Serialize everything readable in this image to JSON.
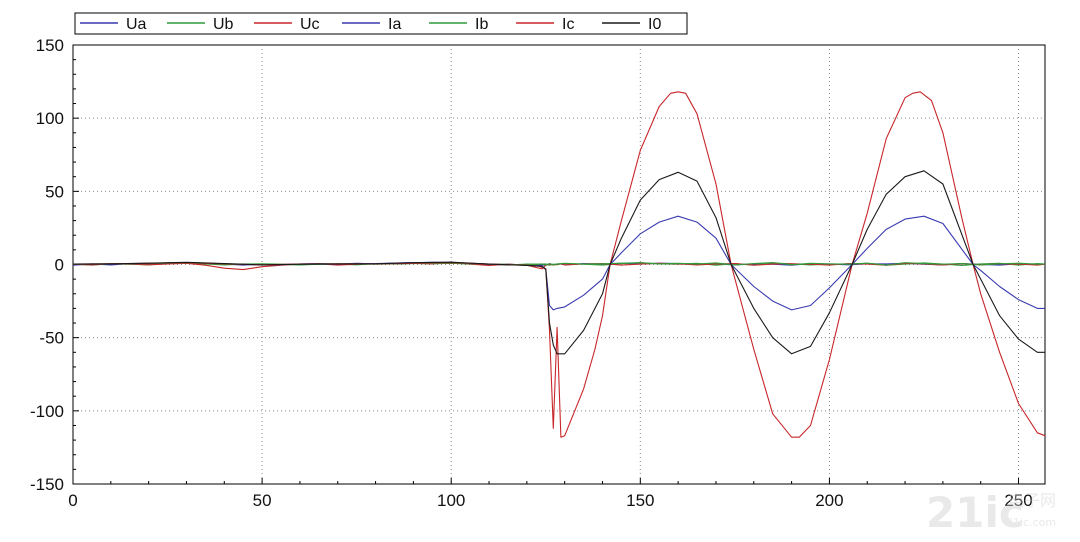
{
  "chart_data": {
    "type": "line",
    "title": "",
    "xlabel": "",
    "ylabel": "",
    "xlim": [
      0,
      257
    ],
    "ylim": [
      -150,
      150
    ],
    "x_ticks": [
      0,
      50,
      100,
      150,
      200,
      250
    ],
    "y_ticks": [
      150,
      100,
      50,
      0,
      -50,
      -100,
      -150
    ],
    "grid": true,
    "legend_position": "top",
    "series": [
      {
        "name": "Ua",
        "color": "#3a3ab0",
        "x": [
          0,
          5,
          10,
          15,
          20,
          25,
          30,
          35,
          40,
          45,
          50,
          55,
          60,
          65,
          70,
          75,
          80,
          85,
          90,
          95,
          100,
          105,
          110,
          115,
          120,
          124,
          125,
          126,
          127,
          128,
          129,
          130,
          135,
          140,
          145,
          150,
          155,
          160,
          165,
          170,
          175,
          180,
          185,
          190,
          195,
          200,
          205,
          210,
          215,
          220,
          225,
          230,
          235,
          240,
          245,
          250,
          255,
          257
        ],
        "values": [
          -0.5,
          0.4,
          -0.3,
          0.6,
          0.2,
          1,
          1.4,
          0.8,
          0.3,
          -0.4,
          0.3,
          -0.2,
          0.4,
          0.6,
          0.2,
          0.8,
          0.4,
          1,
          1.2,
          1.5,
          1.2,
          0.4,
          -0.3,
          0.2,
          -0.4,
          -0.3,
          -0.5,
          0.6,
          -0.2,
          0.3,
          0.4,
          -0.3,
          0.6,
          0.2,
          0.8,
          0.3,
          0.9,
          0.6,
          0.2,
          0.5,
          -0.3,
          0.4,
          0.2,
          -0.5,
          0.6,
          0.3,
          -0.2,
          0.5,
          0.4,
          0.8,
          0.2,
          -0.3,
          0.6,
          0.1,
          -0.4,
          0.5,
          0.2,
          0.1
        ]
      },
      {
        "name": "Ub",
        "color": "#2e9a3a",
        "x": [
          0,
          5,
          10,
          15,
          20,
          25,
          30,
          35,
          40,
          45,
          50,
          55,
          60,
          65,
          70,
          75,
          80,
          85,
          90,
          95,
          100,
          105,
          110,
          115,
          120,
          124,
          125,
          126,
          127,
          128,
          129,
          130,
          135,
          140,
          145,
          150,
          155,
          160,
          165,
          170,
          175,
          180,
          185,
          190,
          195,
          200,
          205,
          210,
          215,
          220,
          225,
          230,
          235,
          240,
          245,
          250,
          255,
          257
        ],
        "values": [
          0.3,
          -0.4,
          0.5,
          0.2,
          -0.2,
          0.6,
          0.9,
          0.4,
          -0.3,
          0.3,
          0.5,
          0.2,
          -0.3,
          0.5,
          0.3,
          -0.2,
          0.6,
          0.4,
          0.8,
          0.5,
          0.9,
          0.3,
          0.2,
          -0.4,
          0.3,
          0.2,
          0.4,
          -0.5,
          0.3,
          -0.2,
          0.4,
          0.6,
          0.2,
          -0.4,
          0.6,
          1.2,
          0.5,
          0.2,
          0.8,
          -0.5,
          0.6,
          -0.4,
          1,
          0.5,
          -0.3,
          0.4,
          0.2,
          0.8,
          -0.5,
          0.3,
          1.1,
          0.3,
          -0.6,
          0.4,
          0.8,
          -0.4,
          0.6,
          0.3
        ]
      },
      {
        "name": "Uc",
        "color": "#c8262a",
        "x": [
          0,
          5,
          10,
          15,
          20,
          25,
          30,
          35,
          40,
          45,
          50,
          55,
          60,
          65,
          70,
          75,
          80,
          85,
          90,
          95,
          100,
          105,
          110,
          115,
          120,
          124,
          125,
          126,
          127,
          128,
          129,
          130,
          135,
          140,
          145,
          150,
          155,
          160,
          165,
          170,
          175,
          180,
          185,
          190,
          195,
          200,
          205,
          210,
          215,
          220,
          225,
          230,
          235,
          240,
          245,
          250,
          255,
          257
        ],
        "values": [
          0.2,
          -0.3,
          0.6,
          0.3,
          -0.2,
          0.4,
          0.8,
          -0.5,
          -2.5,
          -3.5,
          -1.5,
          -0.5,
          0.3,
          0.5,
          -0.4,
          0.2,
          0.6,
          0.4,
          0.8,
          0.5,
          1.5,
          0.3,
          -0.6,
          0.2,
          -0.5,
          -3,
          -0.5,
          0.3,
          -0.4,
          0.2,
          0.5,
          -0.3,
          0.4,
          0.6,
          -0.4,
          0.3,
          0.8,
          0.5,
          -0.3,
          0.4,
          0.6,
          -0.5,
          0.3,
          0.5,
          0.2,
          -0.4,
          0.6,
          0.3,
          -0.5,
          0.8,
          0.4,
          -0.3,
          0.6,
          -0.2,
          0.5,
          0.3,
          -0.4,
          0.2
        ]
      },
      {
        "name": "Ia",
        "color": "#3a3ab0",
        "x": [
          0,
          10,
          20,
          30,
          40,
          50,
          60,
          70,
          80,
          90,
          100,
          110,
          120,
          124,
          125,
          126,
          127,
          128,
          130,
          135,
          140,
          142,
          145,
          150,
          155,
          160,
          165,
          170,
          174,
          180,
          185,
          190,
          195,
          200,
          206,
          210,
          215,
          220,
          225,
          230,
          238,
          240,
          245,
          250,
          255,
          257
        ],
        "values": [
          0.3,
          0.4,
          0.8,
          1.4,
          0.5,
          -0.3,
          0.2,
          0.3,
          0.6,
          1.2,
          1.5,
          0.2,
          -0.5,
          -1,
          -3,
          -28,
          -31,
          -30,
          -29,
          -21,
          -10,
          0,
          8,
          21,
          29,
          33,
          29,
          18,
          0,
          -15,
          -25,
          -31,
          -28,
          -16,
          0,
          11,
          24,
          31,
          33,
          28,
          0,
          -4,
          -15,
          -24,
          -30,
          -30
        ]
      },
      {
        "name": "Ib",
        "color": "#2e9a3a",
        "x": [
          0,
          10,
          20,
          30,
          40,
          50,
          60,
          70,
          80,
          90,
          100,
          110,
          120,
          124,
          125,
          126,
          127,
          128,
          130,
          135,
          140,
          145,
          150,
          155,
          160,
          165,
          170,
          175,
          180,
          185,
          190,
          195,
          200,
          205,
          210,
          215,
          220,
          225,
          230,
          235,
          240,
          245,
          250,
          255,
          257
        ],
        "values": [
          0.2,
          0.5,
          0.6,
          1,
          0.4,
          0.3,
          -0.2,
          0.5,
          0.2,
          0.6,
          0.8,
          0.3,
          -0.2,
          0.4,
          -0.4,
          0.6,
          -0.3,
          0.4,
          0.8,
          0.3,
          0.5,
          0.9,
          1.2,
          0.4,
          0.8,
          0.3,
          1.1,
          -0.3,
          0.6,
          1.4,
          -0.2,
          0.8,
          0.4,
          0.3,
          0.9,
          -0.4,
          1.2,
          0.6,
          0.2,
          0.7,
          -0.3,
          0.5,
          0.9,
          0.2,
          0.4
        ]
      },
      {
        "name": "Ic",
        "color": "#c8262a",
        "x": [
          0,
          10,
          20,
          30,
          40,
          50,
          60,
          70,
          80,
          90,
          100,
          110,
          120,
          123,
          124,
          125,
          126,
          127,
          128,
          129,
          130,
          135,
          138,
          140,
          142,
          145,
          150,
          155,
          158,
          160,
          162,
          165,
          170,
          174,
          180,
          185,
          190,
          192,
          195,
          200,
          206,
          210,
          215,
          220,
          222,
          224,
          227,
          230,
          235,
          238,
          240,
          245,
          250,
          255,
          257
        ],
        "values": [
          0.3,
          0.5,
          0.8,
          1.2,
          0.4,
          -0.2,
          0.3,
          0.5,
          0.4,
          0.8,
          1.2,
          0.3,
          -0.5,
          -1,
          -2,
          -3,
          -45,
          -112,
          -43,
          -118,
          -117,
          -85,
          -58,
          -35,
          0,
          30,
          78,
          108,
          117,
          118,
          117,
          103,
          55,
          0,
          -58,
          -102,
          -118,
          -118,
          -110,
          -65,
          0,
          35,
          86,
          114,
          117,
          118,
          112,
          90,
          32,
          0,
          -20,
          -60,
          -95,
          -115,
          -117
        ]
      },
      {
        "name": "I0",
        "color": "#1a1a1a",
        "x": [
          0,
          10,
          20,
          30,
          40,
          50,
          60,
          70,
          80,
          90,
          100,
          110,
          120,
          124,
          125,
          126,
          127,
          128,
          130,
          135,
          140,
          142,
          145,
          150,
          155,
          160,
          165,
          170,
          174,
          180,
          185,
          190,
          195,
          200,
          206,
          210,
          215,
          220,
          225,
          230,
          238,
          240,
          245,
          250,
          255,
          257
        ],
        "values": [
          0.3,
          0.4,
          0.9,
          1.5,
          0.6,
          -0.3,
          0.2,
          0.4,
          0.5,
          1.2,
          1.6,
          0.3,
          -0.6,
          -1.2,
          -3.5,
          -40,
          -55,
          -61,
          -61,
          -45,
          -20,
          0,
          18,
          44,
          58,
          63,
          57,
          32,
          0,
          -30,
          -50,
          -61,
          -56,
          -33,
          0,
          24,
          48,
          60,
          64,
          55,
          0,
          -10,
          -35,
          -51,
          -60,
          -60
        ]
      }
    ]
  },
  "watermark": {
    "text_main": "21ic",
    "text_cn": "电子网",
    "text_sub": "21ic.com"
  }
}
